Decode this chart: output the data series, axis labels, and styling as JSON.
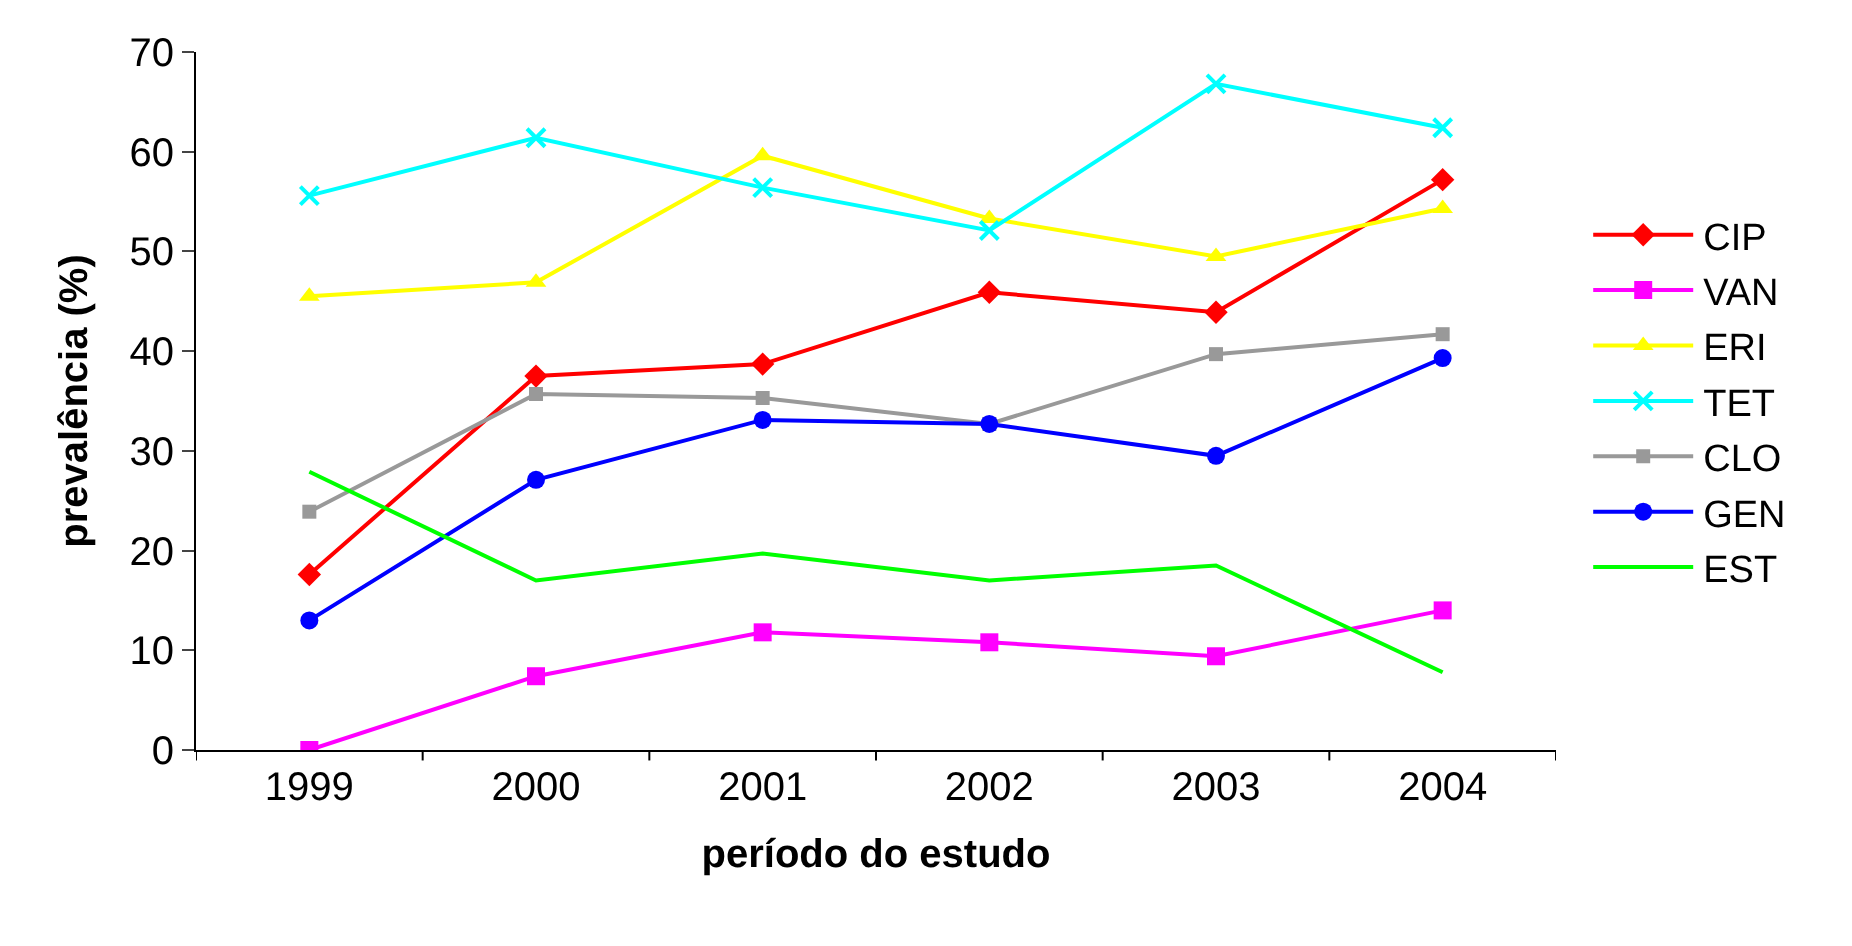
{
  "chart_data": {
    "type": "line",
    "xlabel": "período do estudo",
    "ylabel": "prevalência (%)",
    "categories": [
      "1999",
      "2000",
      "2001",
      "2002",
      "2003",
      "2004"
    ],
    "ylim": [
      0,
      70
    ],
    "yticks": [
      0,
      10,
      20,
      30,
      40,
      50,
      60,
      70
    ],
    "legend": "right",
    "line_style": "solid",
    "series": [
      {
        "name": "CIP",
        "color": "#ff0000",
        "marker": "diamond",
        "values": [
          17.6,
          37.5,
          38.7,
          45.9,
          43.9,
          57.2
        ]
      },
      {
        "name": "VAN",
        "color": "#ff00ff",
        "marker": "square",
        "values": [
          0,
          7.4,
          11.8,
          10.8,
          9.4,
          14.0
        ]
      },
      {
        "name": "ERI",
        "color": "#ffff00",
        "marker": "triangle",
        "values": [
          45.5,
          46.9,
          59.6,
          53.3,
          49.5,
          54.3
        ]
      },
      {
        "name": "TET",
        "color": "#00ffff",
        "marker": "cross",
        "values": [
          55.6,
          61.4,
          56.4,
          52.1,
          66.8,
          62.4
        ]
      },
      {
        "name": "CLO",
        "color": "#999999",
        "marker": "square",
        "values": [
          23.9,
          35.7,
          35.3,
          32.7,
          39.7,
          41.7
        ]
      },
      {
        "name": "GEN",
        "color": "#0000ff",
        "marker": "circle",
        "values": [
          13.0,
          27.1,
          33.1,
          32.7,
          29.5,
          39.3
        ]
      },
      {
        "name": "EST",
        "color": "#00ff00",
        "marker": "none",
        "values": [
          27.9,
          17.0,
          19.7,
          17.0,
          18.5,
          7.8
        ]
      }
    ]
  }
}
